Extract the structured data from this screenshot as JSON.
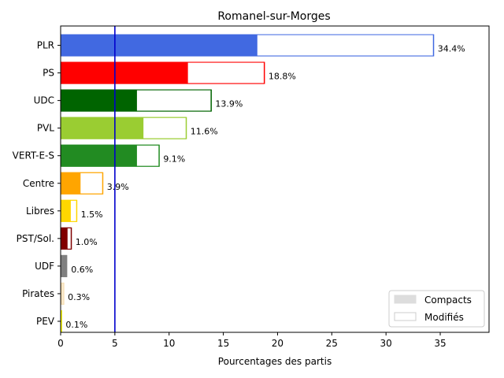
{
  "chart_data": {
    "type": "bar",
    "orientation": "horizontal",
    "stacked": true,
    "title": "Romanel-sur-Morges",
    "xlabel": "Pourcentages des partis",
    "ylabel": "",
    "xlim": [
      0,
      39.5
    ],
    "xticks": [
      0,
      5,
      10,
      15,
      20,
      25,
      30,
      35
    ],
    "threshold_line": 5,
    "threshold_color": "#0000cc",
    "categories": [
      "PLR",
      "PS",
      "UDC",
      "PVL",
      "VERT-E-S",
      "Centre",
      "Libres",
      "PST/Sol.",
      "UDF",
      "Pirates",
      "PEV"
    ],
    "colors": [
      "#4169e1",
      "#ff0000",
      "#006400",
      "#9acd32",
      "#228b22",
      "#ffa500",
      "#ffd700",
      "#800000",
      "#808080",
      "#f5deb3",
      "#ffff00"
    ],
    "series": [
      {
        "name": "Compacts",
        "values": [
          18.1,
          11.7,
          7.0,
          7.6,
          7.0,
          1.8,
          0.9,
          0.6,
          0.6,
          0.15,
          0.05
        ]
      },
      {
        "name": "Modifiés",
        "values": [
          16.3,
          7.1,
          6.9,
          4.0,
          2.1,
          2.1,
          0.6,
          0.4,
          0.0,
          0.15,
          0.05
        ]
      }
    ],
    "totals": [
      34.4,
      18.8,
      13.9,
      11.6,
      9.1,
      3.9,
      1.5,
      1.0,
      0.6,
      0.3,
      0.1
    ],
    "total_labels": [
      "34.4%",
      "18.8%",
      "13.9%",
      "11.6%",
      "9.1%",
      "3.9%",
      "1.5%",
      "1.0%",
      "0.6%",
      "0.3%",
      "0.1%"
    ],
    "legend": {
      "placement": "bottom-right",
      "entries": [
        {
          "label": "Compacts",
          "fill": "#dddddd",
          "stroke": "#dddddd"
        },
        {
          "label": "Modifiés",
          "fill": "#ffffff",
          "stroke": "#cccccc"
        }
      ]
    }
  }
}
